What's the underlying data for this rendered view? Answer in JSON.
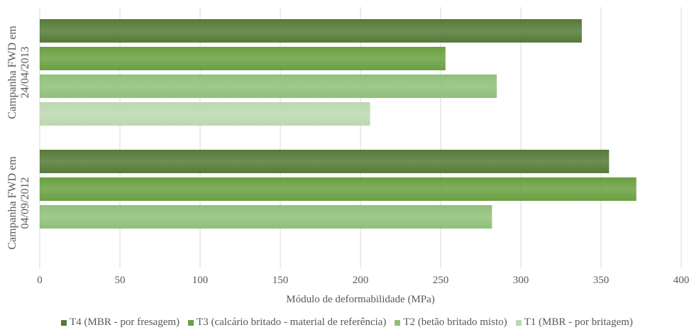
{
  "chart_data": {
    "type": "bar",
    "orientation": "horizontal",
    "title": "",
    "xlabel": "Módulo de deformabilidade (MPa)",
    "ylabel": "",
    "xlim": [
      0,
      400
    ],
    "xticks": [
      0,
      50,
      100,
      150,
      200,
      250,
      300,
      350,
      400
    ],
    "grid": true,
    "legend_position": "bottom",
    "categories": [
      {
        "line1": "Campanha FWD em",
        "line2": "24/04/2013"
      },
      {
        "line1": "Campanha FWD em",
        "line2": "04/09/2012"
      }
    ],
    "series": [
      {
        "name": "T4 (MBR - por fresagem)",
        "color": "#557a37",
        "values": [
          338,
          355
        ]
      },
      {
        "name": "T3 (calcário britado - material de referência)",
        "color": "#6aa041",
        "values": [
          253,
          372
        ]
      },
      {
        "name": "T2 (betão britado misto)",
        "color": "#8fc07a",
        "values": [
          285,
          282
        ]
      },
      {
        "name": "T1 (MBR - por britagem)",
        "color": "#bcd8b0",
        "values": [
          206,
          null
        ]
      }
    ]
  }
}
